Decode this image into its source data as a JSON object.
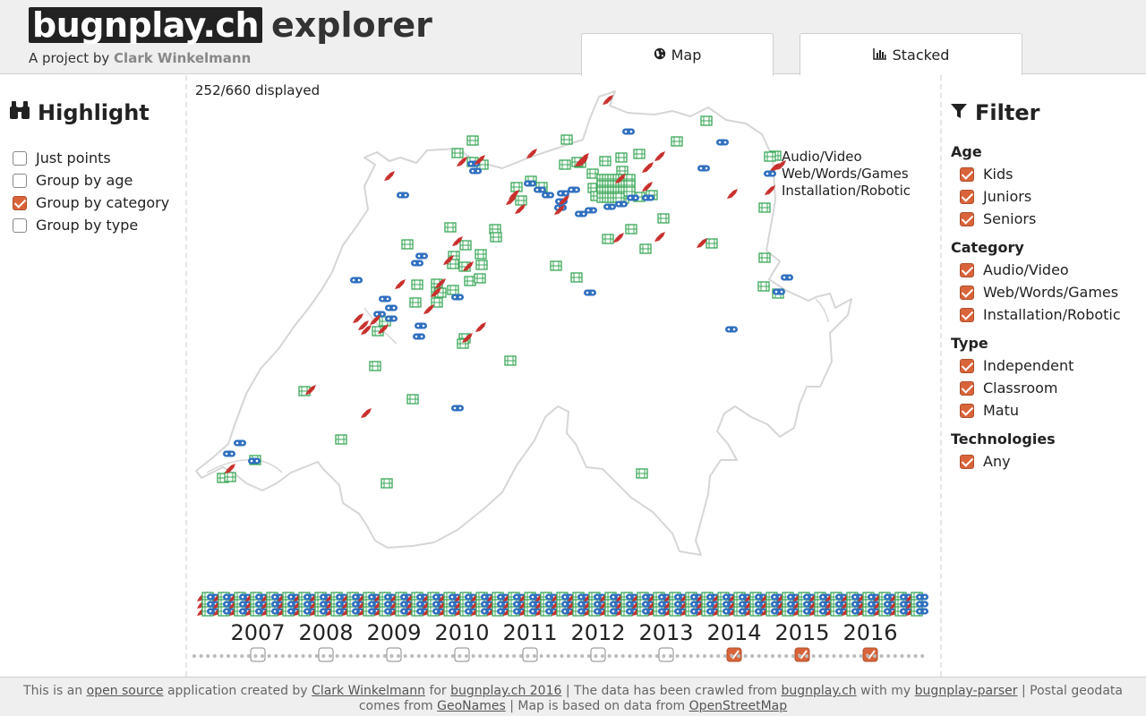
{
  "header": {
    "logo": "bugnplay.ch",
    "suffix": "explorer",
    "byline_prefix": "A project by",
    "byline_author": "Clark Winkelmann"
  },
  "tabs": [
    {
      "label": "Map",
      "icon": "globe-icon",
      "active": true
    },
    {
      "label": "Stacked",
      "icon": "bar-chart-icon",
      "active": false
    }
  ],
  "highlight": {
    "title": "Highlight",
    "icon": "binoculars-icon",
    "options": [
      {
        "label": "Just points",
        "checked": false
      },
      {
        "label": "Group by age",
        "checked": false
      },
      {
        "label": "Group by category",
        "checked": true
      },
      {
        "label": "Group by type",
        "checked": false
      }
    ]
  },
  "filter": {
    "title": "Filter",
    "icon": "funnel-icon",
    "groups": [
      {
        "title": "Age",
        "options": [
          {
            "label": "Kids",
            "checked": true
          },
          {
            "label": "Juniors",
            "checked": true
          },
          {
            "label": "Seniors",
            "checked": true
          }
        ]
      },
      {
        "title": "Category",
        "options": [
          {
            "label": "Audio/Video",
            "checked": true
          },
          {
            "label": "Web/Words/Games",
            "checked": true
          },
          {
            "label": "Installation/Robotic",
            "checked": true
          }
        ]
      },
      {
        "title": "Type",
        "options": [
          {
            "label": "Independent",
            "checked": true
          },
          {
            "label": "Classroom",
            "checked": true
          },
          {
            "label": "Matu",
            "checked": true
          }
        ]
      },
      {
        "title": "Technologies",
        "options": [
          {
            "label": "Any",
            "checked": true
          }
        ]
      }
    ]
  },
  "map": {
    "displayed": "252/660 displayed",
    "legend": [
      {
        "label": "Audio/Video",
        "icon": "film-icon",
        "color": "#3aa757"
      },
      {
        "label": "Web/Words/Games",
        "icon": "gamepad-icon",
        "color": "#2f6fbf"
      },
      {
        "label": "Installation/Robotic",
        "icon": "rocket-icon",
        "color": "#c8302d"
      }
    ]
  },
  "timeline": {
    "years": [
      {
        "label": "2007",
        "checked": false
      },
      {
        "label": "2008",
        "checked": false
      },
      {
        "label": "2009",
        "checked": false
      },
      {
        "label": "2010",
        "checked": false
      },
      {
        "label": "2011",
        "checked": false
      },
      {
        "label": "2012",
        "checked": false
      },
      {
        "label": "2013",
        "checked": false
      },
      {
        "label": "2014",
        "checked": true
      },
      {
        "label": "2015",
        "checked": true
      },
      {
        "label": "2016",
        "checked": true
      }
    ]
  },
  "footer": {
    "t1": "This is an",
    "l1": "open source",
    "t2": "application created by",
    "l2": "Clark Winkelmann",
    "t3": "for",
    "l3": "bugnplay.ch 2016",
    "t4": "| The data has been crawled from",
    "l4": "bugnplay.ch",
    "t5": "with my",
    "l5": "bugnplay-parser",
    "t6": "| Postal geodata comes from",
    "l6": "GeoNames",
    "t7": "| Map is based on data from",
    "l7": "OpenStreetMap"
  },
  "colors": {
    "accent": "#d9643a",
    "audio": "#3aa757",
    "web": "#2f6fbf",
    "robot": "#c8302d"
  }
}
